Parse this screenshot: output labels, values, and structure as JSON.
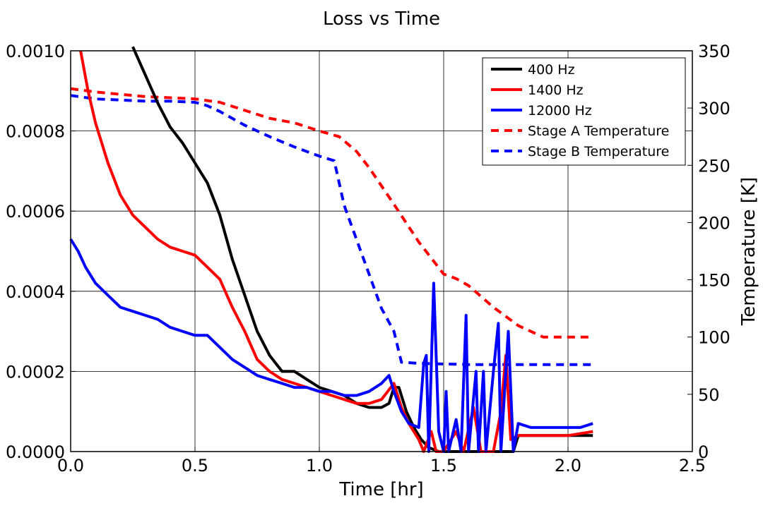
{
  "chart_data": {
    "type": "line",
    "title": "Loss vs Time",
    "xlabel": "Time [hr]",
    "ylabel": "",
    "y2label": "Temperature [K]",
    "xlim": [
      0.0,
      2.5
    ],
    "ylim": [
      0.0,
      0.001
    ],
    "y2lim": [
      0,
      350
    ],
    "xticks": [
      "0.0",
      "0.5",
      "1.0",
      "1.5",
      "2.0",
      "2.5"
    ],
    "yticks": [
      "0.0000",
      "0.0002",
      "0.0004",
      "0.0006",
      "0.0008",
      "0.0010"
    ],
    "y2ticks": [
      "0",
      "50",
      "100",
      "150",
      "200",
      "250",
      "300",
      "350"
    ],
    "grid": true,
    "legend_position": "top-right",
    "series": [
      {
        "name": "400 Hz",
        "color": "#000000",
        "style": "solid",
        "axis": "left",
        "points": [
          [
            0.25,
            0.00101
          ],
          [
            0.3,
            0.00094
          ],
          [
            0.35,
            0.00087
          ],
          [
            0.4,
            0.00081
          ],
          [
            0.45,
            0.00077
          ],
          [
            0.5,
            0.00072
          ],
          [
            0.55,
            0.00067
          ],
          [
            0.6,
            0.00059
          ],
          [
            0.65,
            0.00048
          ],
          [
            0.7,
            0.00039
          ],
          [
            0.75,
            0.0003
          ],
          [
            0.8,
            0.00024
          ],
          [
            0.85,
            0.0002
          ],
          [
            0.9,
            0.0002
          ],
          [
            0.95,
            0.00018
          ],
          [
            1.0,
            0.00016
          ],
          [
            1.05,
            0.00015
          ],
          [
            1.1,
            0.00014
          ],
          [
            1.15,
            0.00012
          ],
          [
            1.2,
            0.00011
          ],
          [
            1.25,
            0.00011
          ],
          [
            1.28,
            0.00012
          ],
          [
            1.3,
            0.00016
          ],
          [
            1.32,
            0.00016
          ],
          [
            1.35,
            0.0001
          ],
          [
            1.38,
            6e-05
          ],
          [
            1.41,
            3e-05
          ],
          [
            1.44,
            1e-05
          ],
          [
            1.48,
            0.0
          ],
          [
            1.55,
            0.0
          ],
          [
            1.65,
            0.0
          ],
          [
            1.75,
            0.0
          ],
          [
            1.78,
            0.0
          ],
          [
            1.8,
            4e-05
          ],
          [
            1.9,
            4e-05
          ],
          [
            2.0,
            4e-05
          ],
          [
            2.1,
            4e-05
          ]
        ]
      },
      {
        "name": "1400 Hz",
        "color": "#ff0000",
        "style": "solid",
        "axis": "left",
        "points": [
          [
            0.04,
            0.001
          ],
          [
            0.07,
            0.0009
          ],
          [
            0.1,
            0.00082
          ],
          [
            0.15,
            0.00072
          ],
          [
            0.2,
            0.00064
          ],
          [
            0.25,
            0.00059
          ],
          [
            0.3,
            0.00056
          ],
          [
            0.35,
            0.00053
          ],
          [
            0.4,
            0.00051
          ],
          [
            0.45,
            0.0005
          ],
          [
            0.5,
            0.00049
          ],
          [
            0.55,
            0.00046
          ],
          [
            0.6,
            0.00043
          ],
          [
            0.65,
            0.00036
          ],
          [
            0.7,
            0.0003
          ],
          [
            0.75,
            0.00023
          ],
          [
            0.8,
            0.0002
          ],
          [
            0.85,
            0.00018
          ],
          [
            0.9,
            0.00017
          ],
          [
            0.95,
            0.00016
          ],
          [
            1.0,
            0.00015
          ],
          [
            1.05,
            0.00014
          ],
          [
            1.1,
            0.00013
          ],
          [
            1.15,
            0.00012
          ],
          [
            1.2,
            0.00012
          ],
          [
            1.25,
            0.00013
          ],
          [
            1.3,
            0.00017
          ],
          [
            1.33,
            0.00011
          ],
          [
            1.36,
            7e-05
          ],
          [
            1.4,
            3e-05
          ],
          [
            1.42,
            0.0
          ],
          [
            1.45,
            5e-05
          ],
          [
            1.47,
            0.0
          ],
          [
            1.5,
            0.0
          ],
          [
            1.55,
            5e-05
          ],
          [
            1.58,
            0.0
          ],
          [
            1.62,
            0.00011
          ],
          [
            1.65,
            0.0
          ],
          [
            1.7,
            0.0
          ],
          [
            1.73,
            0.0001
          ],
          [
            1.75,
            0.00024
          ],
          [
            1.77,
            3e-05
          ],
          [
            1.8,
            4e-05
          ],
          [
            1.9,
            4e-05
          ],
          [
            2.0,
            4e-05
          ],
          [
            2.1,
            5e-05
          ]
        ]
      },
      {
        "name": "12000 Hz",
        "color": "#0000ff",
        "style": "solid",
        "axis": "left",
        "points": [
          [
            0.0,
            0.00053
          ],
          [
            0.03,
            0.0005
          ],
          [
            0.06,
            0.00046
          ],
          [
            0.1,
            0.00042
          ],
          [
            0.15,
            0.00039
          ],
          [
            0.2,
            0.00036
          ],
          [
            0.25,
            0.00035
          ],
          [
            0.3,
            0.00034
          ],
          [
            0.35,
            0.00033
          ],
          [
            0.4,
            0.00031
          ],
          [
            0.45,
            0.0003
          ],
          [
            0.5,
            0.00029
          ],
          [
            0.55,
            0.00029
          ],
          [
            0.6,
            0.00026
          ],
          [
            0.65,
            0.00023
          ],
          [
            0.7,
            0.00021
          ],
          [
            0.75,
            0.00019
          ],
          [
            0.8,
            0.00018
          ],
          [
            0.85,
            0.00017
          ],
          [
            0.9,
            0.00016
          ],
          [
            0.95,
            0.00016
          ],
          [
            1.0,
            0.00015
          ],
          [
            1.05,
            0.00015
          ],
          [
            1.1,
            0.00014
          ],
          [
            1.15,
            0.00014
          ],
          [
            1.2,
            0.00015
          ],
          [
            1.25,
            0.00017
          ],
          [
            1.28,
            0.00019
          ],
          [
            1.3,
            0.00015
          ],
          [
            1.33,
            0.0001
          ],
          [
            1.36,
            7e-05
          ],
          [
            1.4,
            6e-05
          ],
          [
            1.42,
            0.00022
          ],
          [
            1.43,
            0.00024
          ],
          [
            1.44,
            0.0
          ],
          [
            1.46,
            0.00042
          ],
          [
            1.48,
            5e-05
          ],
          [
            1.5,
            0.0
          ],
          [
            1.51,
            0.00015
          ],
          [
            1.52,
            0.0
          ],
          [
            1.55,
            8e-05
          ],
          [
            1.57,
            0.0
          ],
          [
            1.59,
            0.00034
          ],
          [
            1.6,
            0.0
          ],
          [
            1.63,
            0.0002
          ],
          [
            1.64,
            0.0
          ],
          [
            1.66,
            0.0002
          ],
          [
            1.67,
            0.0
          ],
          [
            1.7,
            0.0002
          ],
          [
            1.72,
            0.00032
          ],
          [
            1.73,
            0.0
          ],
          [
            1.76,
            0.0003
          ],
          [
            1.78,
            0.0
          ],
          [
            1.8,
            7e-05
          ],
          [
            1.85,
            6e-05
          ],
          [
            1.9,
            6e-05
          ],
          [
            1.95,
            6e-05
          ],
          [
            2.0,
            6e-05
          ],
          [
            2.05,
            6e-05
          ],
          [
            2.1,
            7e-05
          ]
        ]
      },
      {
        "name": "Stage A Temperature",
        "color": "#ff0000",
        "style": "dashed",
        "axis": "right",
        "points": [
          [
            0.0,
            317
          ],
          [
            0.1,
            314
          ],
          [
            0.2,
            312
          ],
          [
            0.3,
            310
          ],
          [
            0.4,
            309
          ],
          [
            0.5,
            308
          ],
          [
            0.6,
            305
          ],
          [
            0.7,
            298
          ],
          [
            0.8,
            291
          ],
          [
            0.9,
            287
          ],
          [
            1.0,
            280
          ],
          [
            1.08,
            275
          ],
          [
            1.15,
            262
          ],
          [
            1.2,
            248
          ],
          [
            1.3,
            216
          ],
          [
            1.4,
            183
          ],
          [
            1.5,
            155
          ],
          [
            1.55,
            151
          ],
          [
            1.6,
            145
          ],
          [
            1.7,
            126
          ],
          [
            1.8,
            110
          ],
          [
            1.9,
            100
          ],
          [
            2.0,
            100
          ],
          [
            2.1,
            100
          ]
        ]
      },
      {
        "name": "Stage B Temperature",
        "color": "#0000ff",
        "style": "dashed",
        "axis": "right",
        "points": [
          [
            0.0,
            311
          ],
          [
            0.1,
            308
          ],
          [
            0.2,
            307
          ],
          [
            0.3,
            306
          ],
          [
            0.4,
            306
          ],
          [
            0.5,
            305
          ],
          [
            0.55,
            302
          ],
          [
            0.6,
            297
          ],
          [
            0.7,
            285
          ],
          [
            0.8,
            275
          ],
          [
            0.9,
            266
          ],
          [
            1.0,
            258
          ],
          [
            1.06,
            254
          ],
          [
            1.1,
            215
          ],
          [
            1.15,
            185
          ],
          [
            1.2,
            155
          ],
          [
            1.25,
            125
          ],
          [
            1.3,
            105
          ],
          [
            1.33,
            78
          ],
          [
            1.4,
            77
          ],
          [
            1.6,
            76
          ],
          [
            1.8,
            76
          ],
          [
            2.0,
            76
          ],
          [
            2.1,
            76
          ]
        ]
      }
    ]
  }
}
